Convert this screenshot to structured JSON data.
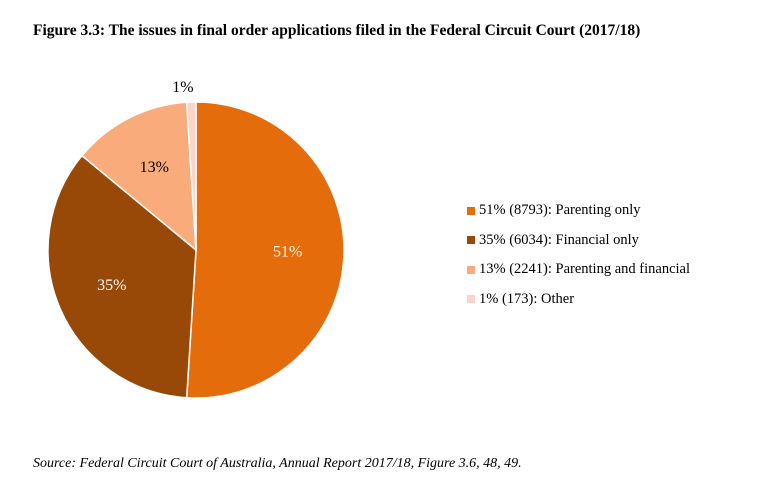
{
  "chart_data": {
    "type": "pie",
    "title": "Figure 3.3: The issues in final order applications filed in the Federal Circuit Court (2017/18)",
    "slices": [
      {
        "label": "51%",
        "value": 8793,
        "color": "#E46C0A",
        "label_color": "#ffffff",
        "legend": "51% (8793): Parenting only"
      },
      {
        "label": "35%",
        "value": 6034,
        "color": "#984807",
        "label_color": "#ffffff",
        "legend": "35% (6034): Financial only"
      },
      {
        "label": "13%",
        "value": 2241,
        "color": "#F9AB7C",
        "label_color": "#000000",
        "legend": "13% (2241): Parenting and financial"
      },
      {
        "label": "1%",
        "value": 173,
        "color": "#FCD5C8",
        "label_color": "#000000",
        "legend": "1% (173): Other"
      }
    ],
    "legend_position": "right",
    "start": "12 o'clock",
    "direction": "clockwise"
  },
  "source": "Source: Federal Circuit Court of Australia, Annual Report 2017/18, Figure 3.6, 48, 49."
}
